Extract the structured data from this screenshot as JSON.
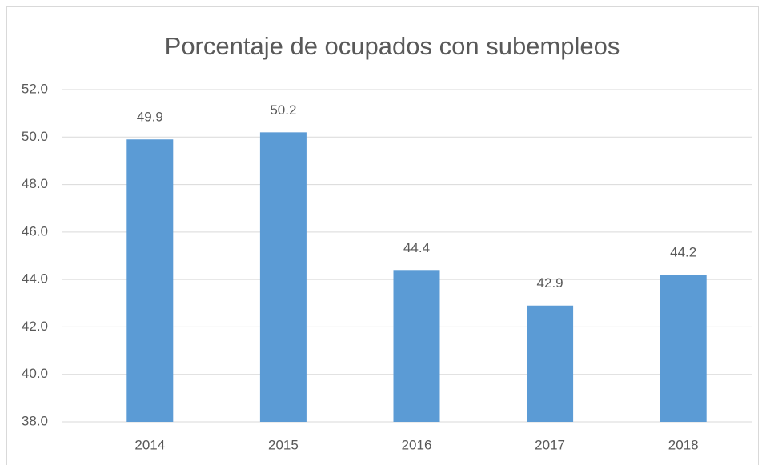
{
  "chart_data": {
    "type": "bar",
    "title": "Porcentaje de ocupados con subempleos",
    "categories": [
      "2014",
      "2015",
      "2016",
      "2017",
      "2018"
    ],
    "values": [
      49.9,
      50.2,
      44.4,
      42.9,
      44.2
    ],
    "color": "#5b9bd5",
    "ylim": [
      38,
      52
    ],
    "yticks": [
      {
        "value": 38,
        "label": "38.0"
      },
      {
        "value": 40,
        "label": "40.0"
      },
      {
        "value": 42,
        "label": "42.0"
      },
      {
        "value": 44,
        "label": "44.0"
      },
      {
        "value": 46,
        "label": "46.0"
      },
      {
        "value": 48,
        "label": "48.0"
      },
      {
        "value": 50,
        "label": "50.0"
      },
      {
        "value": 52,
        "label": "52.0"
      }
    ],
    "grid": true
  }
}
